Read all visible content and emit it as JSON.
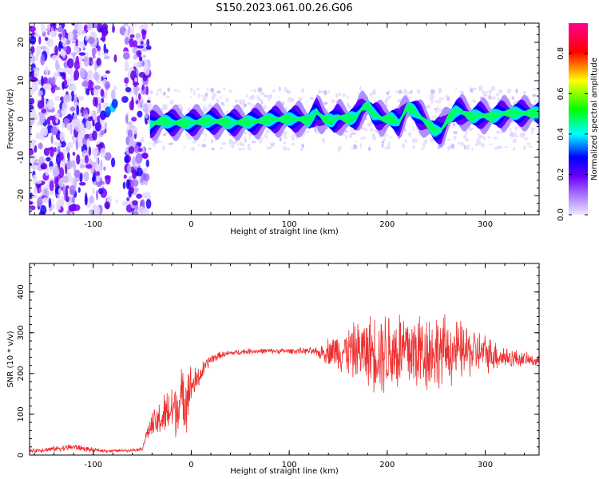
{
  "title": "S150.2023.061.00.26.G06",
  "colors": {
    "snr_line": "#ee3030",
    "axis": "#000000"
  },
  "chart_data": [
    {
      "type": "heatmap",
      "xlabel": "Height of straight line (km)",
      "ylabel": "Frequency (Hz)",
      "xlim": [
        -165,
        355
      ],
      "ylim": [
        -25,
        25
      ],
      "xticks": [
        -100,
        0,
        100,
        200,
        300
      ],
      "yticks": [
        -20,
        -10,
        0,
        10,
        20
      ],
      "colorbar": {
        "label": "Normalized spectral amplitude",
        "range": [
          0.0,
          0.95
        ],
        "ticks": [
          0.0,
          0.2,
          0.4,
          0.6,
          0.8
        ],
        "colormap": [
          "#d8c8ff",
          "#8a00ff",
          "#0000ff",
          "#00ffff",
          "#00ff00",
          "#ffff00",
          "#ff0000",
          "#ff0090"
        ]
      },
      "ridge": {
        "name": "dominant frequency track",
        "x": [
          -42,
          -30,
          -20,
          0,
          20,
          40,
          60,
          80,
          100,
          110,
          120,
          128,
          135,
          145,
          150,
          160,
          168,
          175,
          180,
          185,
          195,
          205,
          212,
          220,
          228,
          240,
          248,
          255,
          262,
          270,
          275,
          285,
          295,
          305,
          320,
          340,
          355
        ],
        "y": [
          -1.5,
          -0.5,
          -1,
          -1,
          -0.5,
          -1,
          -0.8,
          -0.2,
          0,
          0,
          -0.5,
          2,
          0,
          -0.5,
          0.5,
          0,
          0.5,
          3,
          3.5,
          1.5,
          0,
          0,
          -1,
          3,
          2,
          -1,
          -3,
          -3,
          0,
          2,
          2,
          0.5,
          1,
          0.5,
          1.5,
          1.5,
          1.5
        ]
      }
    },
    {
      "type": "line",
      "xlabel": "Height of straight line (km)",
      "ylabel": "SNR (10 * v/v)",
      "xlim": [
        -165,
        355
      ],
      "ylim": [
        0,
        470
      ],
      "xticks": [
        -100,
        0,
        100,
        200,
        300
      ],
      "yticks": [
        0,
        100,
        200,
        300,
        400
      ],
      "series": [
        {
          "x": [
            -165,
            -140,
            -120,
            -100,
            -80,
            -60,
            -50,
            -45,
            -40,
            -30,
            -20,
            -10,
            -5,
            0,
            5,
            10,
            15,
            20,
            30,
            40,
            60,
            80,
            100,
            120,
            130,
            140,
            160,
            180,
            200,
            220,
            240,
            260,
            280,
            300,
            320,
            340,
            355
          ],
          "y": [
            10,
            15,
            20,
            12,
            10,
            12,
            15,
            55,
            70,
            90,
            110,
            130,
            150,
            170,
            180,
            200,
            220,
            235,
            245,
            250,
            255,
            255,
            255,
            255,
            250,
            255,
            255,
            255,
            255,
            255,
            255,
            255,
            255,
            250,
            240,
            235,
            230
          ],
          "spread": [
            5,
            8,
            10,
            6,
            4,
            4,
            5,
            20,
            40,
            60,
            80,
            90,
            100,
            60,
            40,
            30,
            20,
            15,
            10,
            8,
            8,
            8,
            8,
            10,
            15,
            40,
            70,
            100,
            130,
            130,
            120,
            100,
            80,
            55,
            35,
            20,
            15
          ]
        }
      ]
    }
  ]
}
